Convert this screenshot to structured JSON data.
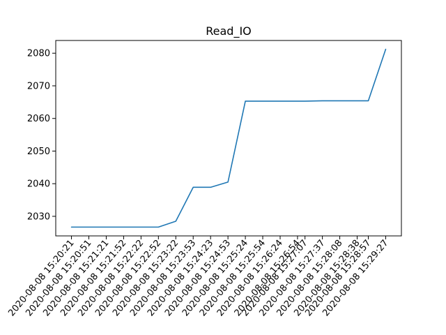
{
  "chart_data": {
    "type": "line",
    "title": "Read_IO",
    "xlabel": "",
    "ylabel": "",
    "categories": [
      "2020-08-08 15:20:21",
      "2020-08-08 15:20:51",
      "2020-08-08 15:21:21",
      "2020-08-08 15:21:52",
      "2020-08-08 15:22:22",
      "2020-08-08 15:22:52",
      "2020-08-08 15:23:22",
      "2020-08-08 15:23:53",
      "2020-08-08 15:24:23",
      "2020-08-08 15:24:53",
      "2020-08-08 15:25:24",
      "2020-08-08 15:25:54",
      "2020-08-08 15:26:24",
      "2020-08-08 15:26:54",
      "2020-08-08 15:27:07",
      "2020-08-08 15:27:37",
      "2020-08-08 15:28:08",
      "2020-08-08 15:28:38",
      "2020-08-08 15:28:57",
      "2020-08-08 15:29:27"
    ],
    "series": [
      {
        "values": [
          2026.7,
          2026.7,
          2026.7,
          2026.7,
          2026.7,
          2026.7,
          2028.5,
          2038.9,
          2038.9,
          2040.5,
          2065.3,
          2065.3,
          2065.3,
          2065.3,
          2065.3,
          2065.4,
          2065.4,
          2065.4,
          2065.4,
          2081.2
        ],
        "color": "#1f77b4"
      }
    ],
    "x_positions": [
      0,
      1,
      2,
      3,
      4,
      5,
      6,
      7,
      8,
      9,
      10,
      11,
      12,
      13,
      13.43,
      14.43,
      15.43,
      16.43,
      17.07,
      18.07
    ],
    "ylim": [
      2024.0,
      2083.9
    ],
    "yticks": [
      2030,
      2040,
      2050,
      2060,
      2070,
      2080
    ],
    "grid": false,
    "legend": "none"
  }
}
